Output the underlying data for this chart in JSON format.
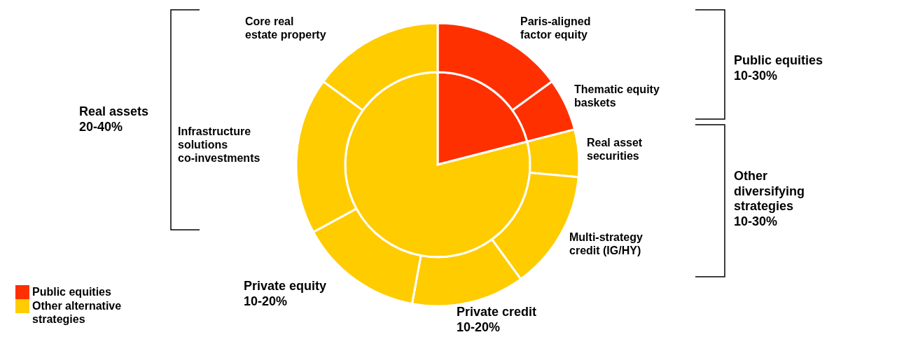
{
  "chart_data": [
    {
      "type": "pie",
      "legend": "bottom left",
      "categories": [
        "Public equities",
        "Other alternative strategies"
      ],
      "values": [
        21,
        79
      ],
      "colors": [
        "#ff3000",
        "#ffcc00"
      ]
    },
    {
      "type": "donut",
      "categories": [
        "Paris-aligned factor equity",
        "Thematic equity baskets",
        "Real asset securities",
        "Multi-strategy credit (IG/HY)",
        null,
        null,
        "Infrastructure solutions co-investments",
        "Core real estate property"
      ],
      "values": [
        15,
        6,
        5.4,
        13.6,
        12.9,
        14.2,
        17.9,
        15
      ],
      "colors": [
        "#ff3000",
        "#ff3000",
        "#ffcc00",
        "#ffcc00",
        "#ffcc00",
        "#ffcc00",
        "#ffcc00",
        "#ffcc00"
      ],
      "annotations": [
        "Public equities 10-30%",
        "Other diversifying strategies 10-30%",
        "Real assets 20-40%",
        "Private equity 10-20%",
        "Private credit 10-20%"
      ]
    }
  ]
}
